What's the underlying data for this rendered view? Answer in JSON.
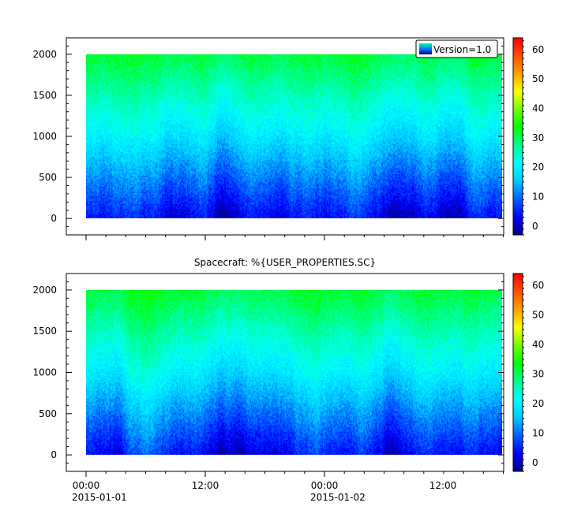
{
  "chart_data": [
    {
      "type": "heatmap",
      "title": "",
      "xlabel": "",
      "ylabel": "",
      "ylim": [
        -200,
        2200
      ],
      "y_ticks": [
        0,
        500,
        1000,
        1500,
        2000
      ],
      "x_ticks": [],
      "data_y_range": [
        0,
        2000
      ],
      "legend": {
        "entries": [
          "Version=1.0"
        ],
        "placement": "top-right"
      },
      "colorbar": {
        "range": [
          -3,
          64
        ],
        "ticks": [
          0,
          10,
          20,
          30,
          40,
          50,
          60
        ]
      },
      "colormap": [
        "#000080",
        "#0000ff",
        "#0060ff",
        "#00c8ff",
        "#00ffff",
        "#00ff90",
        "#00ff00",
        "#70ff00",
        "#ffff00",
        "#ffa000",
        "#ff5000",
        "#ff0000"
      ],
      "value_profile": {
        "y": [
          0,
          250,
          500,
          750,
          1000,
          1250,
          1500,
          1750,
          2000
        ],
        "value": [
          3,
          7,
          11,
          15,
          19,
          22,
          25,
          28,
          31
        ]
      },
      "grid": false
    },
    {
      "type": "heatmap",
      "title": "Spacecraft: %{USER_PROPERTIES.SC}",
      "xlabel": "",
      "ylabel": "",
      "ylim": [
        -200,
        2200
      ],
      "y_ticks": [
        0,
        500,
        1000,
        1500,
        2000
      ],
      "x_ticks": [
        {
          "label": "00:00",
          "sublabel": "2015-01-01"
        },
        {
          "label": "12:00",
          "sublabel": ""
        },
        {
          "label": "00:00",
          "sublabel": "2015-01-02"
        },
        {
          "label": "12:00",
          "sublabel": ""
        }
      ],
      "data_y_range": [
        0,
        2000
      ],
      "colorbar": {
        "range": [
          -3,
          64
        ],
        "ticks": [
          0,
          10,
          20,
          30,
          40,
          50,
          60
        ]
      },
      "colormap": [
        "#000080",
        "#0000ff",
        "#0060ff",
        "#00c8ff",
        "#00ffff",
        "#00ff90",
        "#00ff00",
        "#70ff00",
        "#ffff00",
        "#ffa000",
        "#ff5000",
        "#ff0000"
      ],
      "value_profile": {
        "y": [
          0,
          250,
          500,
          750,
          1000,
          1250,
          1500,
          1750,
          2000
        ],
        "value": [
          3,
          7,
          11,
          15,
          19,
          22,
          25,
          28,
          31
        ]
      },
      "grid": false
    }
  ]
}
